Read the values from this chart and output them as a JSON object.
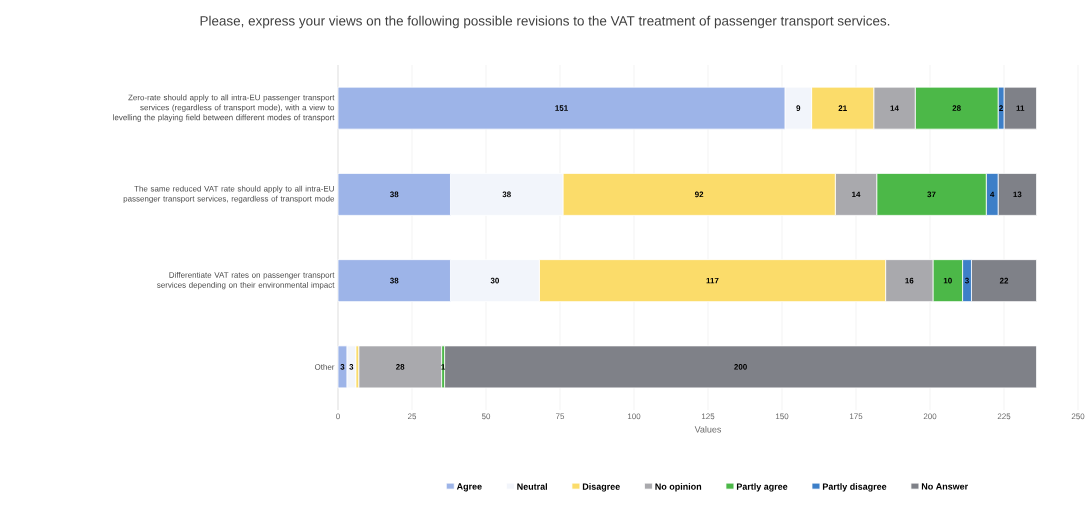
{
  "chart_data": {
    "type": "bar",
    "orientation": "horizontal",
    "stacked": true,
    "title": "Please, express your views on the following possible revisions to the VAT treatment of passenger transport services.",
    "xlabel": "Values",
    "categories": [
      "Zero-rate should apply to all intra-EU passenger transport services (regardless of transport mode), with a view to levelling the playing field between different modes of transport",
      "The same reduced VAT rate should apply to all intra-EU passenger transport services, regardless of transport mode",
      "Differentiate VAT rates on passenger transport services depending on their environmental impact",
      "Other"
    ],
    "series": [
      {
        "name": "Agree",
        "color": "#9db4e8",
        "values": [
          151,
          38,
          38,
          3
        ],
        "value_labels": [
          "151",
          "38",
          "38",
          "3"
        ]
      },
      {
        "name": "Neutral",
        "color": "#f2f5fb",
        "values": [
          9,
          38,
          30,
          3
        ],
        "value_labels": [
          "9",
          "38",
          "30",
          "3"
        ]
      },
      {
        "name": "Disagree",
        "color": "#fbdc6a",
        "values": [
          21,
          92,
          117,
          1
        ],
        "value_labels": [
          "21",
          "92",
          "117",
          null
        ]
      },
      {
        "name": "No opinion",
        "color": "#a9a9ad",
        "values": [
          14,
          14,
          16,
          28
        ],
        "value_labels": [
          "14",
          "14",
          "16",
          "28"
        ]
      },
      {
        "name": "Partly agree",
        "color": "#4cb848",
        "values": [
          28,
          37,
          10,
          1
        ],
        "value_labels": [
          "28",
          "37",
          "10",
          "1"
        ]
      },
      {
        "name": "Partly disagree",
        "color": "#3d7fc8",
        "values": [
          2,
          4,
          3,
          null
        ],
        "value_labels": [
          "2",
          "4",
          "3",
          null
        ]
      },
      {
        "name": "No Answer",
        "color": "#7f8188",
        "values": [
          11,
          13,
          22,
          200
        ],
        "value_labels": [
          "11",
          "13",
          "22",
          "200"
        ]
      }
    ],
    "xlim": [
      0,
      250
    ],
    "xticks": [
      0,
      25,
      50,
      75,
      100,
      125,
      150,
      175,
      200,
      225,
      250
    ],
    "grid": "x",
    "legend": "bottom"
  }
}
